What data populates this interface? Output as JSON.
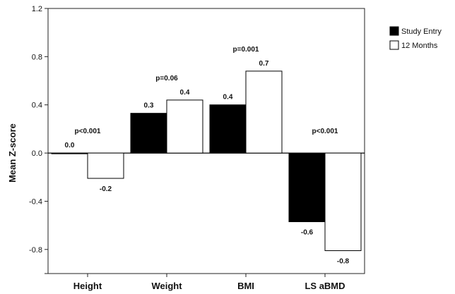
{
  "chart_data": {
    "type": "bar",
    "title": "",
    "xlabel": "",
    "ylabel": "Mean Z-score",
    "categories": [
      "Height",
      "Weight",
      "BMI",
      "LS aBMD"
    ],
    "series": [
      {
        "name": "Study Entry",
        "values": [
          0.0,
          0.33,
          0.4,
          -0.57
        ],
        "labels": [
          "0.0",
          "0.3",
          "0.4",
          "-0.6"
        ],
        "color": "#000000"
      },
      {
        "name": "12 Months",
        "values": [
          -0.21,
          0.44,
          0.68,
          -0.81
        ],
        "labels": [
          "-0.2",
          "0.4",
          "0.7",
          "-0.8"
        ],
        "color": "#ffffff"
      }
    ],
    "annotations": [
      "p<0.001",
      "p=0.06",
      "p=0.001",
      "p<0.001"
    ],
    "ylim": [
      -1.0,
      1.2
    ],
    "yticks": [
      -1.0,
      -0.8,
      -0.4,
      0.0,
      0.4,
      0.8,
      1.2
    ],
    "ytick_labels": [
      "",
      "-0.8",
      "-0.4",
      "0.0",
      "0.4",
      "0.8",
      "1.2"
    ],
    "grid": false,
    "legend": "top-right"
  }
}
